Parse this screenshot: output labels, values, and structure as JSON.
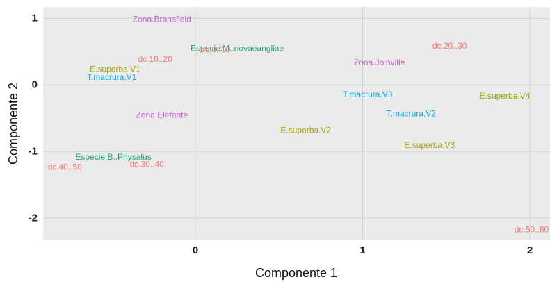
{
  "chart_data": {
    "type": "scatter",
    "xlabel": "Componente 1",
    "ylabel": "Componente 2",
    "labels": [
      "Zona.Bransfield",
      "Especie.M..novaeangliae",
      "dc.10..20",
      "dc.0..10",
      "dc.20..30",
      "E.superba.V1",
      "T.macrura.V1",
      "Zona.Joinville",
      "T.macrura.V3",
      "E.superba.V4",
      "T.macrura.V2",
      "Zona.Elefante",
      "E.superba.V2",
      "E.superba.V3",
      "Especie.B..Physalus",
      "dc.30..40",
      "dc.40..50",
      "dc.50..60"
    ],
    "x": [
      -0.2,
      0.25,
      -0.24,
      0.12,
      1.52,
      -0.48,
      -0.5,
      1.1,
      1.03,
      1.85,
      1.29,
      -0.2,
      0.66,
      1.4,
      -0.49,
      -0.29,
      -0.78,
      2.01
    ],
    "y": [
      0.98,
      0.54,
      0.38,
      0.52,
      0.58,
      0.23,
      0.11,
      0.33,
      -0.15,
      -0.17,
      -0.44,
      -0.46,
      -0.69,
      -0.91,
      -1.09,
      -1.2,
      -1.24,
      -2.18
    ],
    "colors": [
      "#c75fc7",
      "#1aa870",
      "#f8766d",
      "#f8766d",
      "#f8766d",
      "#a3a500",
      "#00a9e8",
      "#c75fc7",
      "#00a9e8",
      "#a3a500",
      "#00a9e8",
      "#c75fc7",
      "#a3a500",
      "#a3a500",
      "#1aa870",
      "#f8766d",
      "#f8766d",
      "#f8766d"
    ],
    "xlim": [
      -0.91,
      2.12
    ],
    "ylim": [
      -2.32,
      1.17
    ],
    "xticks": [
      0,
      1,
      2
    ],
    "yticks": [
      -2,
      -1,
      0,
      1
    ],
    "grid": true
  }
}
